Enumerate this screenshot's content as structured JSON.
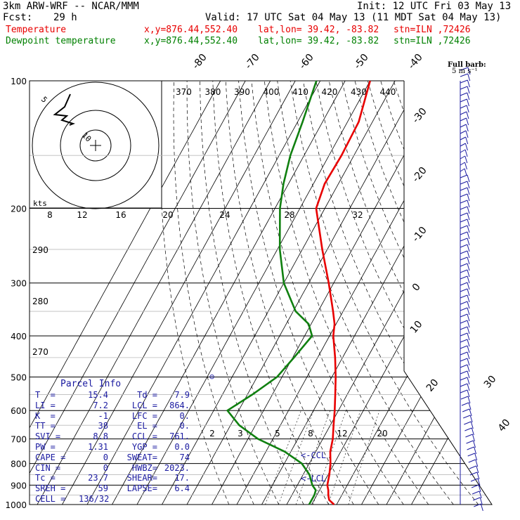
{
  "header": {
    "model": "3km ARW-WRF -- NCAR/MMM",
    "init": "Init: 12 UTC Fri 03 May 13",
    "fcst_label": "Fcst:",
    "fcst_value": "29 h",
    "valid": "Valid: 17 UTC Sat 04 May 13 (11 MDT Sat 04 May 13)",
    "temp_label": "Temperature",
    "dew_label": "Dewpoint temperature",
    "xy": "x,y=876.44,552.40",
    "latlon": "lat,lon= 39.42, -83.82",
    "stn": "stn=ILN ,72426"
  },
  "barb_legend": {
    "title": "Full barb:",
    "unit": "5 m s⁻¹"
  },
  "hodograph": {
    "units": "kts",
    "ring_labels": [
      "5",
      "10"
    ]
  },
  "parcel": {
    "title": "Parcel Info",
    "rows": [
      [
        "T  =",
        "15.4",
        "Td =",
        "7.9"
      ],
      [
        "LI =",
        "7.2",
        "LCL =",
        "864."
      ],
      [
        "K  =",
        "-1",
        "LFC =",
        "0."
      ],
      [
        "TT =",
        "38",
        "EL =",
        "0."
      ],
      [
        "SVI =",
        "8.8",
        "CCL =",
        "761."
      ],
      [
        "PW =",
        "1.31",
        "YGP =",
        "0.0"
      ],
      [
        "CAPE =",
        "0",
        "SWEAT=",
        "74"
      ],
      [
        "CIN =",
        "0",
        "HWBZ=",
        "2023."
      ],
      [
        "Tc =",
        "23.7",
        "SHEAR=",
        "17."
      ],
      [
        "SREH =",
        "59",
        "LAPSE=",
        "6.4"
      ],
      [
        "CELL =",
        "136/32",
        "",
        ""
      ]
    ]
  },
  "annotations": {
    "ccl": "<-CCL",
    "lcl": "<-LCL"
  },
  "colors": {
    "temperature": "#e80000",
    "dewpoint": "#108010",
    "grid": "#000000",
    "text_blue": "#1a1aa0"
  },
  "chart_data": {
    "type": "line",
    "title": "",
    "pressure_levels": [
      1000,
      900,
      800,
      700,
      600,
      500,
      400,
      300,
      200,
      100
    ],
    "temp_tick_labels": [
      "-80",
      "-70",
      "-60",
      "-50",
      "-40",
      "-30",
      "-20",
      "-10",
      "0",
      "10",
      "20",
      "30",
      "40"
    ],
    "theta_labels": [
      "370",
      "380",
      "390",
      "400",
      "410",
      "420",
      "430",
      "440"
    ],
    "theta_e_labels": [
      "290",
      "280",
      "270"
    ],
    "mixing_ratio_labels_top": [
      "8",
      "12",
      "16",
      "20",
      "24",
      "28",
      "32"
    ],
    "mixing_ratio_labels_low": [
      "2",
      "3",
      "5",
      "8",
      "12",
      "20"
    ],
    "ylim": [
      1000,
      100
    ],
    "series": [
      {
        "name": "Temperature",
        "points": [
          [
            1000,
            19.0
          ],
          [
            975,
            16.0
          ],
          [
            950,
            14.6
          ],
          [
            925,
            13.5
          ],
          [
            900,
            12.0
          ],
          [
            850,
            10.5
          ],
          [
            800,
            8.5
          ],
          [
            750,
            5.8
          ],
          [
            700,
            4.0
          ],
          [
            650,
            1.3
          ],
          [
            600,
            -1.5
          ],
          [
            550,
            -4.8
          ],
          [
            500,
            -8.5
          ],
          [
            450,
            -13.0
          ],
          [
            400,
            -18.5
          ],
          [
            375,
            -20.6
          ],
          [
            350,
            -24.0
          ],
          [
            300,
            -32.0
          ],
          [
            250,
            -42.0
          ],
          [
            200,
            -53.5
          ],
          [
            175,
            -55.5
          ],
          [
            150,
            -55.0
          ],
          [
            125,
            -55.5
          ],
          [
            100,
            -60.0
          ]
        ]
      },
      {
        "name": "Dewpoint temperature",
        "points": [
          [
            1000,
            9.0
          ],
          [
            950,
            9.0
          ],
          [
            925,
            8.5
          ],
          [
            900,
            6.0
          ],
          [
            850,
            2.5
          ],
          [
            800,
            -3.0
          ],
          [
            750,
            -12.5
          ],
          [
            700,
            -26.0
          ],
          [
            650,
            -36.5
          ],
          [
            600,
            -44.5
          ],
          [
            550,
            -38.0
          ],
          [
            500,
            -32.0
          ],
          [
            450,
            -29.5
          ],
          [
            400,
            -27.0
          ],
          [
            375,
            -31.0
          ],
          [
            350,
            -39.0
          ],
          [
            300,
            -50.0
          ],
          [
            250,
            -59.0
          ],
          [
            200,
            -68.0
          ],
          [
            175,
            -72.0
          ],
          [
            150,
            -75.5
          ],
          [
            125,
            -78.0
          ],
          [
            100,
            -81.5
          ]
        ]
      }
    ]
  }
}
